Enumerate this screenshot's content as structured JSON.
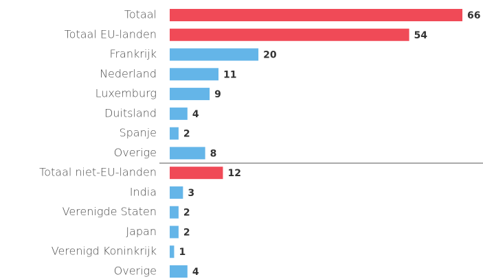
{
  "chart_data": {
    "type": "bar",
    "orientation": "horizontal",
    "categories": [
      "Totaal",
      "Totaal EU-landen",
      "Frankrijk",
      "Nederland",
      "Luxemburg",
      "Duitsland",
      "Spanje",
      "Overige",
      "Totaal niet-EU-landen",
      "India",
      "Verenigde Staten",
      "Japan",
      "Verenigd Koninkrijk",
      "Overige"
    ],
    "values": [
      66,
      54,
      20,
      11,
      9,
      4,
      2,
      8,
      12,
      3,
      2,
      2,
      1,
      4
    ],
    "colors": [
      "#f04a57",
      "#f04a57",
      "#64b5e8",
      "#64b5e8",
      "#64b5e8",
      "#64b5e8",
      "#64b5e8",
      "#64b5e8",
      "#f04a57",
      "#64b5e8",
      "#64b5e8",
      "#64b5e8",
      "#64b5e8",
      "#64b5e8"
    ]
  }
}
